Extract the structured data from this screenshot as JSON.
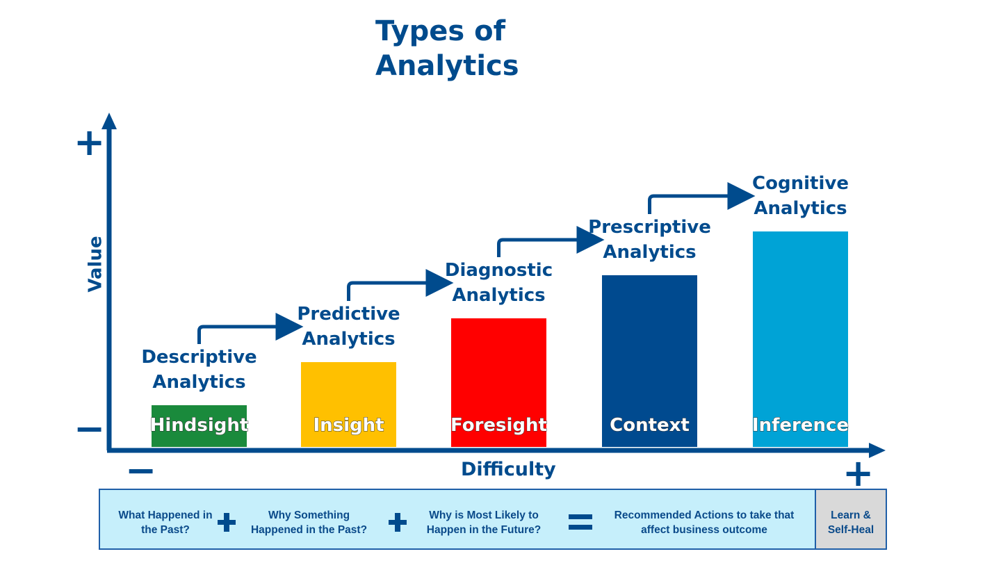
{
  "title": "Types of Analytics",
  "axes": {
    "y_label": "Value",
    "x_label": "Difficulty",
    "y_plus": "+",
    "y_minus": "−",
    "x_plus": "+",
    "x_minus": "−"
  },
  "stages": [
    {
      "label": "Descriptive Analytics",
      "bar_label": "Hindsight",
      "color": "#1a8a3c"
    },
    {
      "label": "Predictive Analytics",
      "bar_label": "Insight",
      "color": "#ffc000"
    },
    {
      "label": "Diagnostic Analytics",
      "bar_label": "Foresight",
      "color": "#ff0000"
    },
    {
      "label": "Prescriptive Analytics",
      "bar_label": "Context",
      "color": "#004a8f"
    },
    {
      "label": "Cognitive Analytics",
      "bar_label": "Inference",
      "color": "#00a3d6"
    }
  ],
  "footer": {
    "items": [
      "What Happened in the Past?",
      "Why Something Happened in the Past?",
      "Why is Most Likely to Happen in the Future?",
      "Recommended Actions to take that affect business outcome"
    ],
    "final": "Learn & Self-Heal"
  }
}
